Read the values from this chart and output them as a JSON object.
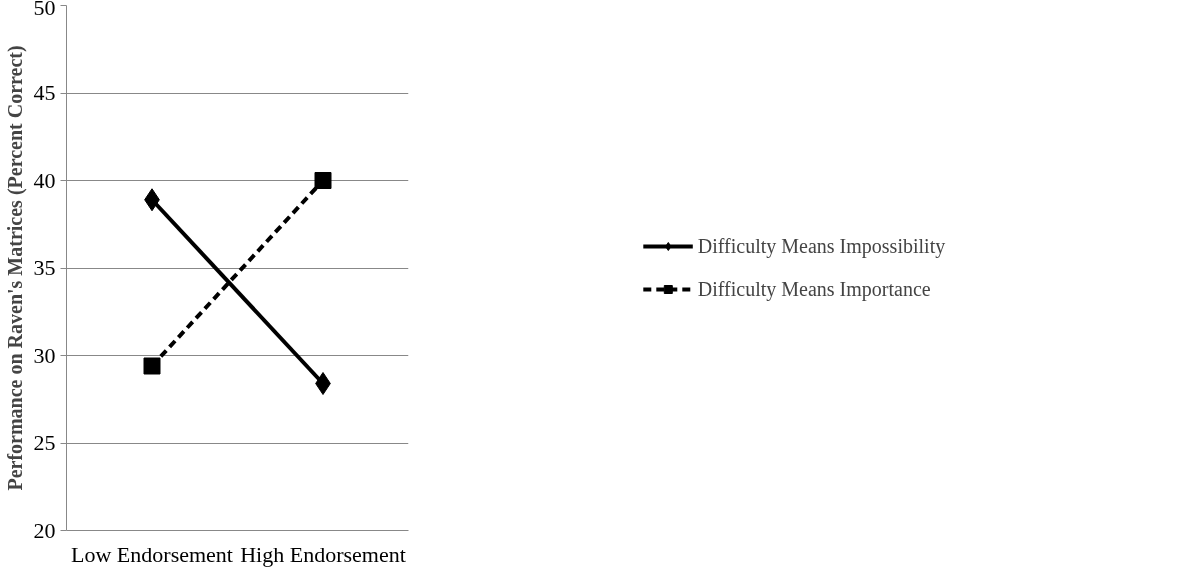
{
  "chart_data": {
    "type": "line",
    "ylabel": "Performance on Raven's Matrices (Percent Correct)",
    "categories": [
      "Low Endorsement",
      "High Endorsement"
    ],
    "series": [
      {
        "name": "Difficulty Means Impossibility",
        "color": "#000000",
        "values": [
          38.9,
          28.4
        ],
        "marker": "diamond",
        "line_style": "solid"
      },
      {
        "name": "Difficulty Means Importance",
        "color": "#000000",
        "values": [
          29.4,
          40.0
        ],
        "marker": "square",
        "line_style": "dashed"
      }
    ],
    "ylim": [
      20,
      50
    ],
    "yticks": [
      20,
      25,
      30,
      35,
      40,
      45,
      50
    ],
    "grid": "y",
    "legend": "right"
  }
}
